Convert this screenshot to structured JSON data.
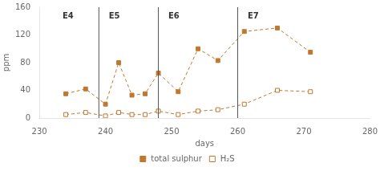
{
  "chart_data": {
    "type": "line",
    "x": [
      234,
      237,
      240,
      242,
      244,
      246,
      248,
      251,
      254,
      257,
      261,
      266,
      271
    ],
    "series": [
      {
        "name": "total sulphur",
        "color": "#c07830",
        "marker": "square",
        "line_style": "dashed",
        "values": [
          35,
          42,
          20,
          80,
          33,
          35,
          65,
          38,
          100,
          83,
          125,
          130,
          95
        ]
      },
      {
        "name": "H₂S",
        "color": "#c07830",
        "marker": "open square",
        "line_style": "dashed",
        "values": [
          5,
          8,
          3,
          8,
          5,
          5,
          10,
          5,
          10,
          12,
          20,
          40,
          38
        ]
      }
    ],
    "vlines": [
      239,
      248,
      260
    ],
    "annotations": [
      {
        "text": "E4",
        "x": 233.5,
        "y": 152
      },
      {
        "text": "E5",
        "x": 240.5,
        "y": 152
      },
      {
        "text": "E6",
        "x": 249.5,
        "y": 152
      },
      {
        "text": "E7",
        "x": 261.5,
        "y": 152
      }
    ],
    "xlabel": "days",
    "ylabel": "ppm",
    "xlim": [
      230,
      280
    ],
    "ylim": [
      0,
      160
    ],
    "xticks": [
      230,
      240,
      250,
      260,
      270,
      280
    ],
    "yticks": [
      0,
      40,
      80,
      120,
      160
    ],
    "grid": false,
    "legend": "bottom"
  }
}
